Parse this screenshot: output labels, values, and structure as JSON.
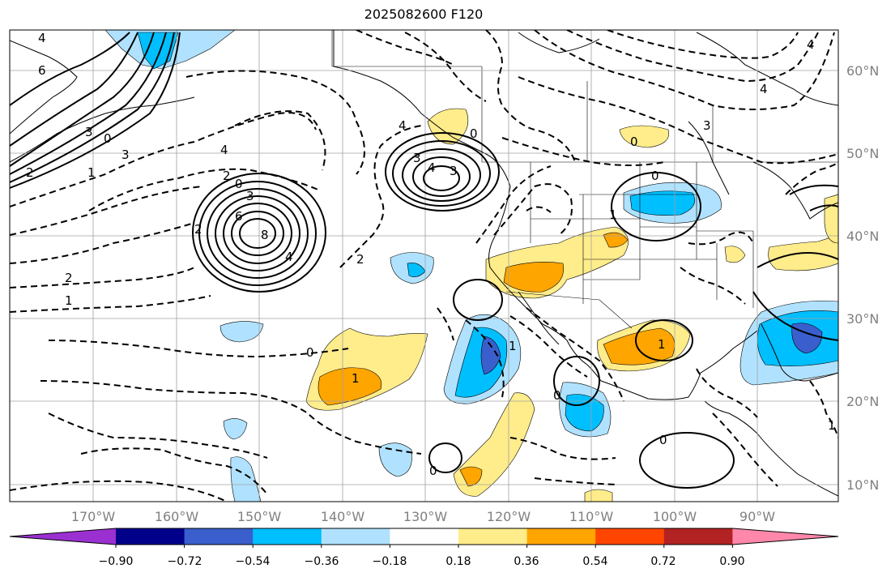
{
  "title": "2025082600 F120",
  "lon_labels": [
    "170°W",
    "160°W",
    "150°W",
    "140°W",
    "130°W",
    "120°W",
    "110°W",
    "100°W",
    "90°W"
  ],
  "lat_labels": [
    "60°N",
    "50°N",
    "40°N",
    "30°N",
    "20°N",
    "10°N"
  ],
  "colorbar": {
    "ticks": [
      "−0.90",
      "−0.72",
      "−0.54",
      "−0.36",
      "−0.18",
      "0.18",
      "0.36",
      "0.54",
      "0.72",
      "0.90"
    ],
    "colors": [
      "#9b30d0",
      "#00008b",
      "#3a5fcd",
      "#00bfff",
      "#b0e2ff",
      "#ffffff",
      "#ffec8b",
      "#ffa500",
      "#ff4500",
      "#b22222",
      "#ff88aa"
    ]
  },
  "contour_labels": [
    "4",
    "6",
    "3",
    "0",
    "3",
    "2",
    "1",
    "4",
    "2",
    "0",
    "3",
    "6",
    "8",
    "4",
    "2",
    "2",
    "1",
    "0",
    "4",
    "3",
    "4",
    "3",
    "0",
    "2",
    "0",
    "4",
    "3",
    "4",
    "0",
    "0",
    "1",
    "1",
    "1",
    "0",
    "0",
    "1",
    "1"
  ]
}
